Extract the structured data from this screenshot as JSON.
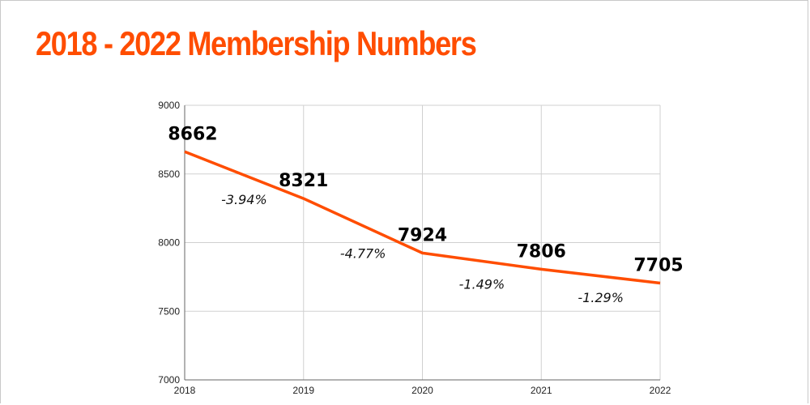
{
  "title": "2018 - 2022 Membership Numbers",
  "colors": {
    "accent": "#ff4d00",
    "grid": "#d0d0d0",
    "text": "#000000"
  },
  "chart_data": {
    "type": "line",
    "title": "2018 - 2022 Membership Numbers",
    "xlabel": "",
    "ylabel": "",
    "categories": [
      "2018",
      "2019",
      "2020",
      "2021",
      "2022"
    ],
    "values": [
      8662,
      8321,
      7924,
      7806,
      7705
    ],
    "data_labels": [
      "8662",
      "8321",
      "7924",
      "7806",
      "7705"
    ],
    "change_labels": [
      "-3.94%",
      "-4.77%",
      "-1.49%",
      "-1.29%"
    ],
    "y_ticks": [
      "9000",
      "8500",
      "8000",
      "7500",
      "7000"
    ],
    "ylim": [
      7000,
      9000
    ],
    "grid": true,
    "legend": "none",
    "series_color": "#ff4d00"
  }
}
